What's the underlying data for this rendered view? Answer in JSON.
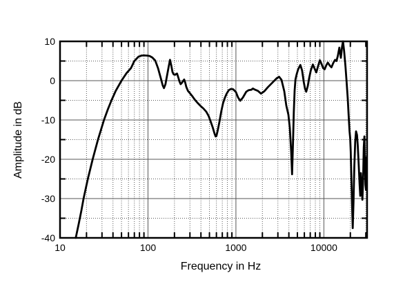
{
  "chart_data": {
    "type": "line",
    "title": "",
    "xlabel": "Frequency in Hz",
    "ylabel": "Amplitude in dB",
    "x_scale": "log",
    "xlim": [
      10,
      31000
    ],
    "ylim": [
      -40,
      10
    ],
    "grid": {
      "x_major_solid": [
        100,
        1000,
        10000
      ],
      "x_minor_dotted_multiples": [
        2,
        3,
        4,
        5,
        6,
        7,
        8,
        9
      ],
      "x_decades": [
        10,
        100,
        1000,
        10000
      ],
      "y_solid": [
        0,
        -10,
        -20,
        -30
      ],
      "y_dotted": [
        5,
        -5,
        -15,
        -25,
        -35
      ]
    },
    "x_ticks": [
      {
        "value": 10,
        "label": "10"
      },
      {
        "value": 100,
        "label": "100"
      },
      {
        "value": 1000,
        "label": "1000"
      },
      {
        "value": 10000,
        "label": "10000"
      }
    ],
    "y_ticks": [
      {
        "value": 10,
        "label": "10"
      },
      {
        "value": 0,
        "label": "0"
      },
      {
        "value": -10,
        "label": "-10"
      },
      {
        "value": -20,
        "label": "-20"
      },
      {
        "value": -30,
        "label": "-30"
      },
      {
        "value": -40,
        "label": "-40"
      }
    ],
    "series": [
      {
        "color": "#000000",
        "points": [
          [
            15.1,
            -40
          ],
          [
            16.3,
            -36.5
          ],
          [
            17.5,
            -33
          ],
          [
            18.5,
            -30
          ],
          [
            20.7,
            -25
          ],
          [
            23.5,
            -20
          ],
          [
            27,
            -15
          ],
          [
            31.6,
            -10
          ],
          [
            35,
            -7.3
          ],
          [
            38.5,
            -5
          ],
          [
            43,
            -2.6
          ],
          [
            50,
            0
          ],
          [
            57,
            1.9
          ],
          [
            64,
            3.2
          ],
          [
            70,
            5
          ],
          [
            78,
            6.1
          ],
          [
            85,
            6.4
          ],
          [
            95,
            6.4
          ],
          [
            104,
            6.3
          ],
          [
            112,
            5.9
          ],
          [
            121,
            5.1
          ],
          [
            130,
            3.2
          ],
          [
            140,
            0.6
          ],
          [
            147,
            -1.2
          ],
          [
            152,
            -1.9
          ],
          [
            158,
            -0.9
          ],
          [
            165,
            1.4
          ],
          [
            172,
            3.6
          ],
          [
            178,
            5.3
          ],
          [
            184,
            3.9
          ],
          [
            190,
            2.2
          ],
          [
            196,
            1.6
          ],
          [
            203,
            1.5
          ],
          [
            209,
            1.7
          ],
          [
            214,
            1.8
          ],
          [
            222,
            0.7
          ],
          [
            229,
            -0.3
          ],
          [
            235,
            -0.9
          ],
          [
            242,
            -0.6
          ],
          [
            250,
            -0.1
          ],
          [
            258,
            0.3
          ],
          [
            266,
            -0.6
          ],
          [
            273,
            -1.6
          ],
          [
            285,
            -2.6
          ],
          [
            300,
            -3.2
          ],
          [
            318,
            -3.9
          ],
          [
            340,
            -4.8
          ],
          [
            368,
            -5.7
          ],
          [
            395,
            -6.4
          ],
          [
            428,
            -7.1
          ],
          [
            460,
            -7.9
          ],
          [
            490,
            -9
          ],
          [
            520,
            -10.6
          ],
          [
            545,
            -11.9
          ],
          [
            570,
            -13.4
          ],
          [
            588,
            -14.2
          ],
          [
            600,
            -14.1
          ],
          [
            620,
            -12.7
          ],
          [
            650,
            -10.4
          ],
          [
            680,
            -7.9
          ],
          [
            715,
            -5.7
          ],
          [
            750,
            -4.3
          ],
          [
            785,
            -3.3
          ],
          [
            830,
            -2.4
          ],
          [
            880,
            -2.1
          ],
          [
            930,
            -2.2
          ],
          [
            1000,
            -2.9
          ],
          [
            1060,
            -4.3
          ],
          [
            1120,
            -5.1
          ],
          [
            1200,
            -4.3
          ],
          [
            1310,
            -2.8
          ],
          [
            1400,
            -2.4
          ],
          [
            1500,
            -2.3
          ],
          [
            1560,
            -2
          ],
          [
            1650,
            -2.3
          ],
          [
            1780,
            -2.6
          ],
          [
            1930,
            -3.3
          ],
          [
            2100,
            -2.7
          ],
          [
            2300,
            -1.7
          ],
          [
            2600,
            -0.5
          ],
          [
            2900,
            0.6
          ],
          [
            3100,
            1
          ],
          [
            3300,
            0.2
          ],
          [
            3550,
            -2.7
          ],
          [
            3740,
            -6.3
          ],
          [
            3950,
            -8.7
          ],
          [
            4100,
            -12
          ],
          [
            4250,
            -18
          ],
          [
            4350,
            -23.8
          ],
          [
            4450,
            -16
          ],
          [
            4550,
            -8
          ],
          [
            4650,
            -2.5
          ],
          [
            4750,
            0.3
          ],
          [
            4900,
            1.6
          ],
          [
            5100,
            2.9
          ],
          [
            5400,
            4
          ],
          [
            5650,
            2.6
          ],
          [
            5900,
            -0.3
          ],
          [
            6100,
            -2
          ],
          [
            6300,
            -2.8
          ],
          [
            6550,
            -1.4
          ],
          [
            6800,
            0.6
          ],
          [
            7100,
            2.6
          ],
          [
            7500,
            4.1
          ],
          [
            7800,
            3.2
          ],
          [
            8200,
            2.1
          ],
          [
            8600,
            3.7
          ],
          [
            9000,
            5.2
          ],
          [
            9400,
            4.3
          ],
          [
            9800,
            3.2
          ],
          [
            10200,
            2.9
          ],
          [
            10700,
            4
          ],
          [
            11100,
            4.6
          ],
          [
            11700,
            3.8
          ],
          [
            12200,
            3.4
          ],
          [
            12800,
            4.5
          ],
          [
            13400,
            5.3
          ],
          [
            13900,
            5
          ],
          [
            14400,
            6.3
          ],
          [
            15000,
            8.4
          ],
          [
            15600,
            5.8
          ],
          [
            16100,
            8.6
          ],
          [
            16500,
            10
          ],
          [
            17000,
            7.6
          ],
          [
            17600,
            3.6
          ],
          [
            18100,
            0
          ],
          [
            18700,
            -4.6
          ],
          [
            19100,
            -8.6
          ],
          [
            19600,
            -12.9
          ],
          [
            19900,
            -14.6
          ],
          [
            20200,
            -18
          ],
          [
            20700,
            -27
          ],
          [
            21100,
            -34.5
          ],
          [
            21300,
            -37.5
          ],
          [
            21700,
            -31
          ],
          [
            22200,
            -22
          ],
          [
            22700,
            -15.5
          ],
          [
            23200,
            -12.9
          ],
          [
            23800,
            -13.8
          ],
          [
            24300,
            -16.5
          ],
          [
            24900,
            -21.5
          ],
          [
            25500,
            -26.5
          ],
          [
            25900,
            -29.3
          ],
          [
            26400,
            -23.5
          ],
          [
            26900,
            -26.5
          ],
          [
            27400,
            -30.3
          ],
          [
            27900,
            -25.5
          ],
          [
            28400,
            -17
          ],
          [
            28900,
            -14.2
          ],
          [
            29300,
            -20.5
          ],
          [
            29700,
            -26.5
          ],
          [
            30100,
            -27.8
          ],
          [
            30500,
            -19.5
          ],
          [
            30800,
            -22.5
          ]
        ]
      }
    ]
  }
}
